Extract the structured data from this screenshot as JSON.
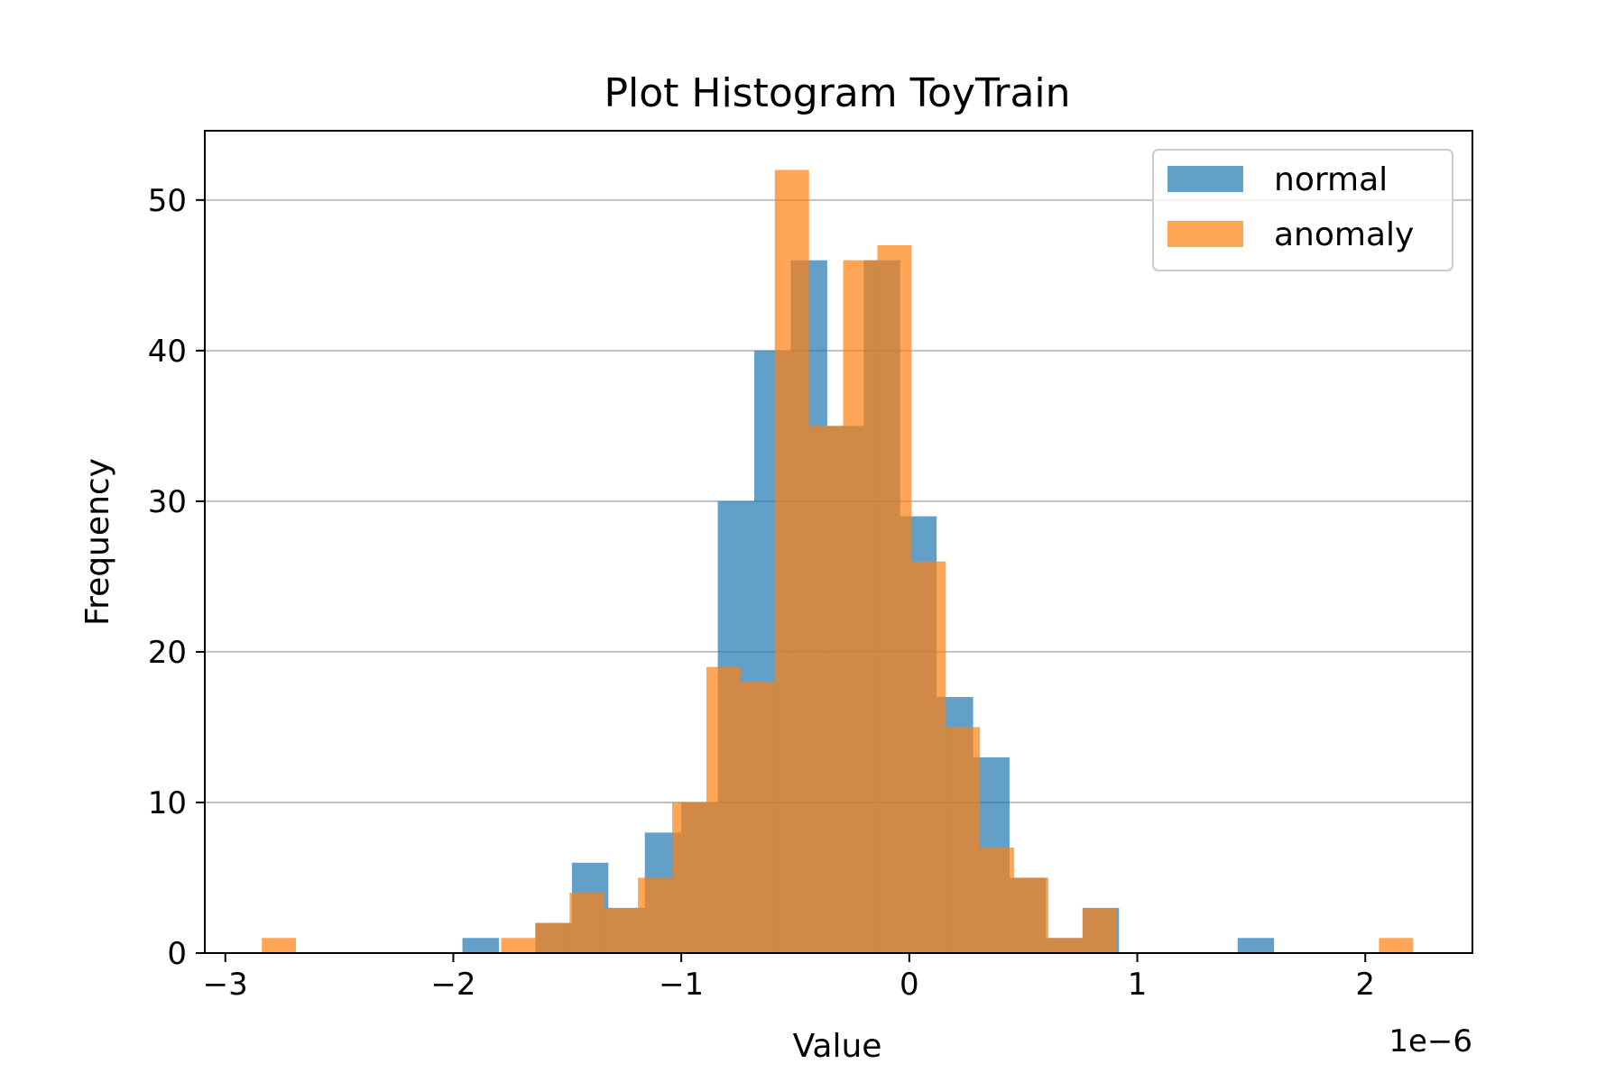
{
  "chart_data": {
    "type": "bar",
    "title": "Plot Histogram ToyTrain",
    "xlabel": "Value",
    "ylabel": "Frequency",
    "x_offset_label": "1e−6",
    "x_scale": 1e-06,
    "xlim": [
      -3.09,
      2.47
    ],
    "ylim": [
      0,
      54.6
    ],
    "xticks": [
      -3,
      -2,
      -1,
      0,
      1,
      2
    ],
    "xtick_labels": [
      "−3",
      "−2",
      "−1",
      "0",
      "1",
      "2"
    ],
    "yticks": [
      0,
      10,
      20,
      30,
      40,
      50
    ],
    "ytick_labels": [
      "0",
      "10",
      "20",
      "30",
      "40",
      "50"
    ],
    "grid": "y",
    "legend_position": "top-right",
    "series": [
      {
        "name": "normal",
        "color": "#1f77b4",
        "opacity": 0.7,
        "bins": [
          {
            "x0": -1.96,
            "x1": -1.8,
            "count": 1
          },
          {
            "x0": -1.64,
            "x1": -1.48,
            "count": 2
          },
          {
            "x0": -1.48,
            "x1": -1.32,
            "count": 6
          },
          {
            "x0": -1.32,
            "x1": -1.16,
            "count": 3
          },
          {
            "x0": -1.16,
            "x1": -1.0,
            "count": 8
          },
          {
            "x0": -1.0,
            "x1": -0.84,
            "count": 10
          },
          {
            "x0": -0.84,
            "x1": -0.68,
            "count": 30
          },
          {
            "x0": -0.68,
            "x1": -0.52,
            "count": 40
          },
          {
            "x0": -0.52,
            "x1": -0.36,
            "count": 46
          },
          {
            "x0": -0.36,
            "x1": -0.2,
            "count": 35
          },
          {
            "x0": -0.2,
            "x1": -0.04,
            "count": 46
          },
          {
            "x0": -0.04,
            "x1": 0.12,
            "count": 29
          },
          {
            "x0": 0.12,
            "x1": 0.28,
            "count": 17
          },
          {
            "x0": 0.28,
            "x1": 0.44,
            "count": 13
          },
          {
            "x0": 0.44,
            "x1": 0.6,
            "count": 5
          },
          {
            "x0": 0.6,
            "x1": 0.76,
            "count": 1
          },
          {
            "x0": 0.76,
            "x1": 0.92,
            "count": 3
          },
          {
            "x0": 1.44,
            "x1": 1.6,
            "count": 1
          }
        ]
      },
      {
        "name": "anomaly",
        "color": "#ff7f0e",
        "opacity": 0.7,
        "bins": [
          {
            "x0": -2.84,
            "x1": -2.69,
            "count": 1
          },
          {
            "x0": -1.79,
            "x1": -1.64,
            "count": 1
          },
          {
            "x0": -1.64,
            "x1": -1.49,
            "count": 2
          },
          {
            "x0": -1.49,
            "x1": -1.34,
            "count": 4
          },
          {
            "x0": -1.34,
            "x1": -1.19,
            "count": 3
          },
          {
            "x0": -1.19,
            "x1": -1.04,
            "count": 5
          },
          {
            "x0": -1.04,
            "x1": -0.89,
            "count": 10
          },
          {
            "x0": -0.89,
            "x1": -0.74,
            "count": 19
          },
          {
            "x0": -0.74,
            "x1": -0.59,
            "count": 18
          },
          {
            "x0": -0.59,
            "x1": -0.44,
            "count": 52
          },
          {
            "x0": -0.44,
            "x1": -0.29,
            "count": 35
          },
          {
            "x0": -0.29,
            "x1": -0.14,
            "count": 46
          },
          {
            "x0": -0.14,
            "x1": 0.01,
            "count": 47
          },
          {
            "x0": 0.01,
            "x1": 0.16,
            "count": 26
          },
          {
            "x0": 0.16,
            "x1": 0.31,
            "count": 15
          },
          {
            "x0": 0.31,
            "x1": 0.46,
            "count": 7
          },
          {
            "x0": 0.46,
            "x1": 0.61,
            "count": 5
          },
          {
            "x0": 0.61,
            "x1": 0.76,
            "count": 1
          },
          {
            "x0": 0.76,
            "x1": 0.91,
            "count": 3
          },
          {
            "x0": 2.06,
            "x1": 2.21,
            "count": 1
          }
        ]
      }
    ]
  }
}
